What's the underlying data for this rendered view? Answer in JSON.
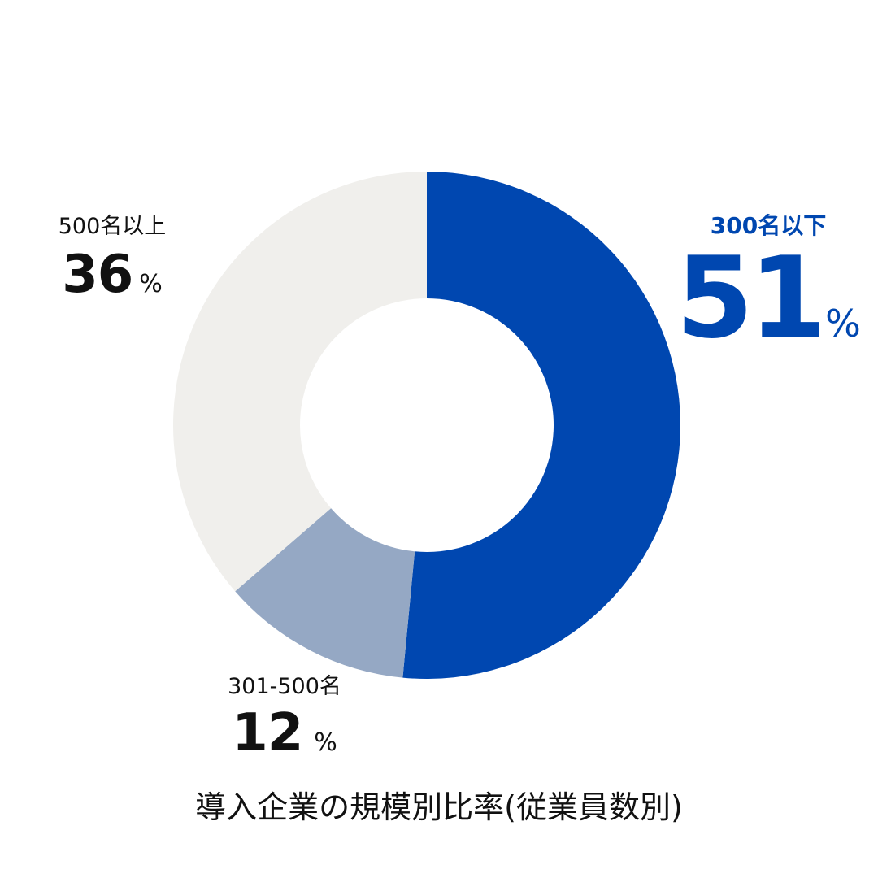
{
  "chart_data": {
    "type": "pie",
    "title": "導入企業の規模別比率(従業員数別)",
    "unit": "%",
    "slices": [
      {
        "label": "300名以下",
        "value": 51,
        "color": "#0047b0"
      },
      {
        "label": "301-500名",
        "value": 12,
        "color": "#95a8c4"
      },
      {
        "label": "500名以上",
        "value": 36,
        "color": "#f0efec"
      }
    ]
  }
}
